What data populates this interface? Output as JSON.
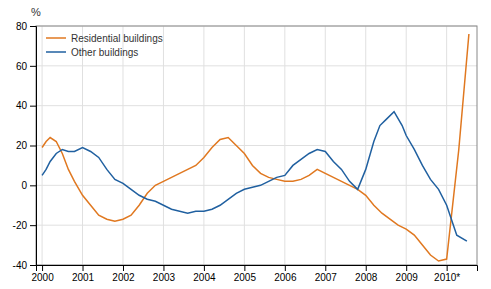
{
  "chart_data": {
    "type": "line",
    "ylabel": "%",
    "xlim": [
      1999.85,
      2010.75
    ],
    "xticks": [
      2000,
      2001,
      2002,
      2003,
      2004,
      2005,
      2006,
      2007,
      2008,
      2009,
      {
        "value": 2010,
        "label": "2010*"
      }
    ],
    "ylim": [
      -40,
      80
    ],
    "yticks": [
      -40,
      -20,
      0,
      20,
      40,
      60,
      80
    ],
    "grid": true,
    "legend": "upper left",
    "series": [
      {
        "name": "Residential buildings",
        "color": "#e07820",
        "x": [
          2000.0,
          2000.1,
          2000.2,
          2000.35,
          2000.5,
          2000.65,
          2000.8,
          2001.0,
          2001.2,
          2001.4,
          2001.6,
          2001.8,
          2002.0,
          2002.2,
          2002.4,
          2002.6,
          2002.8,
          2003.0,
          2003.2,
          2003.4,
          2003.6,
          2003.8,
          2004.0,
          2004.2,
          2004.4,
          2004.6,
          2004.8,
          2005.0,
          2005.2,
          2005.4,
          2005.6,
          2005.8,
          2006.0,
          2006.2,
          2006.4,
          2006.6,
          2006.8,
          2007.0,
          2007.2,
          2007.4,
          2007.6,
          2007.8,
          2008.0,
          2008.2,
          2008.4,
          2008.6,
          2008.8,
          2009.0,
          2009.2,
          2009.4,
          2009.6,
          2009.8,
          2010.0,
          2010.3,
          2010.55
        ],
        "values": [
          19,
          22,
          24,
          22,
          16,
          8,
          2,
          -5,
          -10,
          -15,
          -17,
          -18,
          -17,
          -15,
          -10,
          -4,
          0,
          2,
          4,
          6,
          8,
          10,
          14,
          19,
          23,
          24,
          20,
          16,
          10,
          6,
          4,
          3,
          2,
          2,
          3,
          5,
          8,
          6,
          4,
          2,
          0,
          -2,
          -5,
          -10,
          -14,
          -17,
          -20,
          -22,
          -25,
          -30,
          -35,
          -38,
          -37,
          18,
          76
        ]
      },
      {
        "name": "Other buildings",
        "color": "#2060a0",
        "x": [
          2000.0,
          2000.1,
          2000.2,
          2000.35,
          2000.5,
          2000.65,
          2000.8,
          2001.0,
          2001.2,
          2001.4,
          2001.6,
          2001.8,
          2002.0,
          2002.2,
          2002.4,
          2002.6,
          2002.8,
          2003.0,
          2003.2,
          2003.4,
          2003.6,
          2003.8,
          2004.0,
          2004.2,
          2004.4,
          2004.6,
          2004.8,
          2005.0,
          2005.2,
          2005.4,
          2005.6,
          2005.8,
          2006.0,
          2006.2,
          2006.4,
          2006.6,
          2006.8,
          2007.0,
          2007.2,
          2007.4,
          2007.6,
          2007.8,
          2008.0,
          2008.2,
          2008.35,
          2008.5,
          2008.7,
          2008.9,
          2009.0,
          2009.2,
          2009.4,
          2009.6,
          2009.8,
          2010.0,
          2010.25,
          2010.5
        ],
        "values": [
          5,
          8,
          12,
          16,
          18,
          17,
          17,
          19,
          17,
          14,
          8,
          3,
          1,
          -2,
          -5,
          -7,
          -8,
          -10,
          -12,
          -13,
          -14,
          -13,
          -13,
          -12,
          -10,
          -7,
          -4,
          -2,
          -1,
          0,
          2,
          4,
          5,
          10,
          13,
          16,
          18,
          17,
          12,
          8,
          2,
          -2,
          8,
          22,
          30,
          33,
          37,
          30,
          25,
          18,
          10,
          3,
          -2,
          -10,
          -25,
          -28
        ]
      }
    ]
  }
}
